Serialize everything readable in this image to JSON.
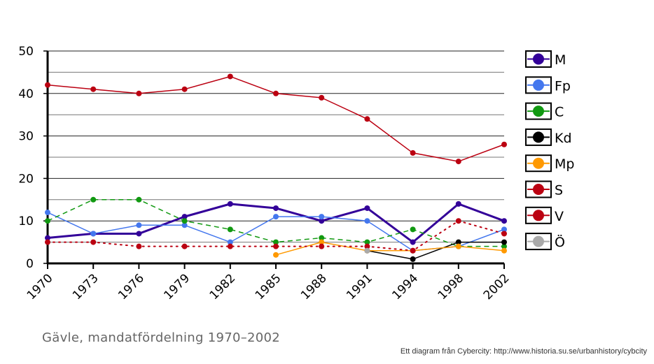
{
  "caption": "Gävle, mandatfördelning 1970–2002",
  "credit": "Ett diagram från Cybercity: http://www.historia.su.se/urbanhistory/cybcity",
  "chart_data": {
    "type": "line",
    "title": "",
    "xlabel": "",
    "ylabel": "",
    "categories": [
      "1970",
      "1973",
      "1976",
      "1979",
      "1982",
      "1985",
      "1988",
      "1991",
      "1994",
      "1998",
      "2002"
    ],
    "ylim": [
      0,
      50
    ],
    "yticks": [
      0,
      10,
      20,
      30,
      40,
      50
    ],
    "grid": true,
    "legend_position": "right",
    "series": [
      {
        "name": "M",
        "color": "#330099",
        "dash": "solid",
        "width": 3,
        "values": [
          6,
          7,
          7,
          11,
          14,
          13,
          10,
          13,
          5,
          14,
          10
        ]
      },
      {
        "name": "Fp",
        "color": "#4477ee",
        "dash": "solid",
        "width": 1.5,
        "values": [
          12,
          7,
          9,
          9,
          5,
          11,
          11,
          10,
          3,
          4,
          8
        ]
      },
      {
        "name": "C",
        "color": "#119911",
        "dash": "dashed",
        "width": 1.5,
        "values": [
          10,
          15,
          15,
          10,
          8,
          5,
          6,
          5,
          8,
          4,
          4
        ]
      },
      {
        "name": "Kd",
        "color": "#000000",
        "dash": "solid",
        "width": 1.5,
        "values": [
          null,
          null,
          null,
          null,
          null,
          null,
          null,
          3,
          1,
          5,
          5
        ]
      },
      {
        "name": "Mp",
        "color": "#ff9900",
        "dash": "solid",
        "width": 1.5,
        "values": [
          null,
          null,
          null,
          null,
          null,
          2,
          5,
          3,
          3,
          4,
          3
        ]
      },
      {
        "name": "S",
        "color": "#bb0011",
        "dash": "solid",
        "width": 1.5,
        "values": [
          42,
          41,
          40,
          41,
          44,
          40,
          39,
          34,
          26,
          24,
          28
        ]
      },
      {
        "name": "V",
        "color": "#bb0011",
        "dash": "dotted",
        "width": 2,
        "values": [
          5,
          5,
          4,
          4,
          4,
          4,
          4,
          4,
          3,
          10,
          7
        ]
      },
      {
        "name": "Ö",
        "color": "#aaaaaa",
        "dash": "solid",
        "width": 1.5,
        "values": [
          null,
          null,
          null,
          null,
          null,
          null,
          null,
          3,
          null,
          null,
          null
        ]
      }
    ]
  }
}
